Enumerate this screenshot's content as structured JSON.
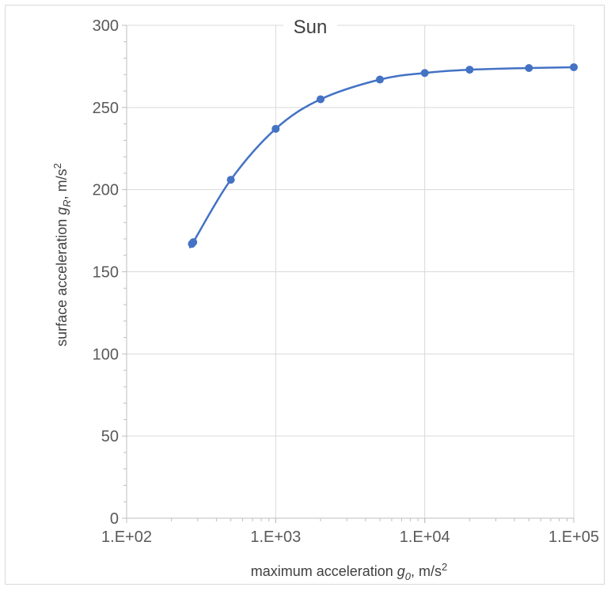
{
  "chart_data": {
    "type": "scatter",
    "title": "Sun",
    "xlabel": {
      "prefix": "maximum acceleration ",
      "var": "g",
      "sub": "0",
      "suffix": ", m/s",
      "sup": "2"
    },
    "ylabel": {
      "prefix": "surface acceleration ",
      "var": "g",
      "sub": "R",
      "suffix": ", m/s",
      "sup": "2"
    },
    "x_scale": "log",
    "xlim": [
      100,
      100000
    ],
    "ylim": [
      0,
      300
    ],
    "x_ticks": [
      {
        "value": 100,
        "label": "1.E+02"
      },
      {
        "value": 1000,
        "label": "1.E+03"
      },
      {
        "value": 10000,
        "label": "1.E+04"
      },
      {
        "value": 100000,
        "label": "1.E+05"
      }
    ],
    "y_ticks": [
      {
        "value": 0,
        "label": "0"
      },
      {
        "value": 50,
        "label": "50"
      },
      {
        "value": 100,
        "label": "100"
      },
      {
        "value": 150,
        "label": "150"
      },
      {
        "value": 200,
        "label": "200"
      },
      {
        "value": 250,
        "label": "250"
      },
      {
        "value": 300,
        "label": "300"
      }
    ],
    "grid": true,
    "smooth_line": true,
    "series": [
      {
        "color": "#4472c4",
        "points": [
          {
            "x": 274,
            "y": 167
          },
          {
            "x": 280,
            "y": 168
          },
          {
            "x": 500,
            "y": 206
          },
          {
            "x": 1000,
            "y": 237
          },
          {
            "x": 2000,
            "y": 255
          },
          {
            "x": 5000,
            "y": 267
          },
          {
            "x": 10000,
            "y": 271
          },
          {
            "x": 20000,
            "y": 273
          },
          {
            "x": 50000,
            "y": 274
          },
          {
            "x": 100000,
            "y": 274.5
          }
        ]
      }
    ]
  }
}
